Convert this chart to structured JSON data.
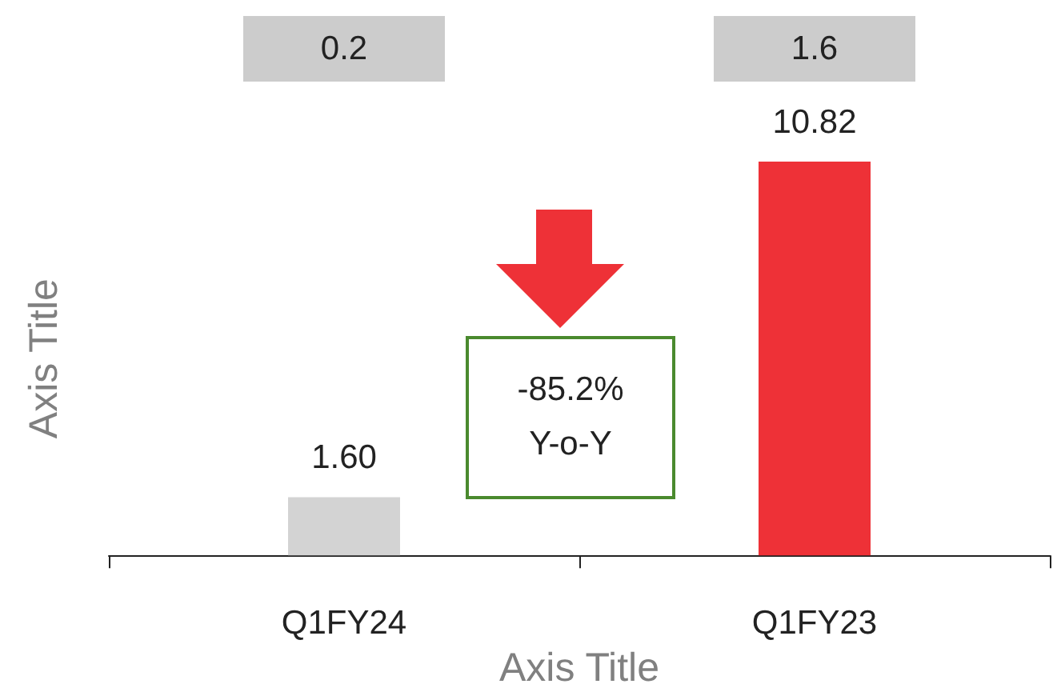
{
  "chart_data": {
    "type": "bar",
    "xlabel": "Axis Title",
    "ylabel": "Axis Title",
    "categories": [
      "Q1FY24",
      "Q1FY23"
    ],
    "values": [
      1.6,
      10.82
    ],
    "value_labels": [
      "1.60",
      "10.82"
    ],
    "colors": [
      "#d3d3d3",
      "#ee3137"
    ],
    "annotations": [
      "0.2",
      "1.6",
      "-85.2%\nY-o-Y"
    ]
  }
}
